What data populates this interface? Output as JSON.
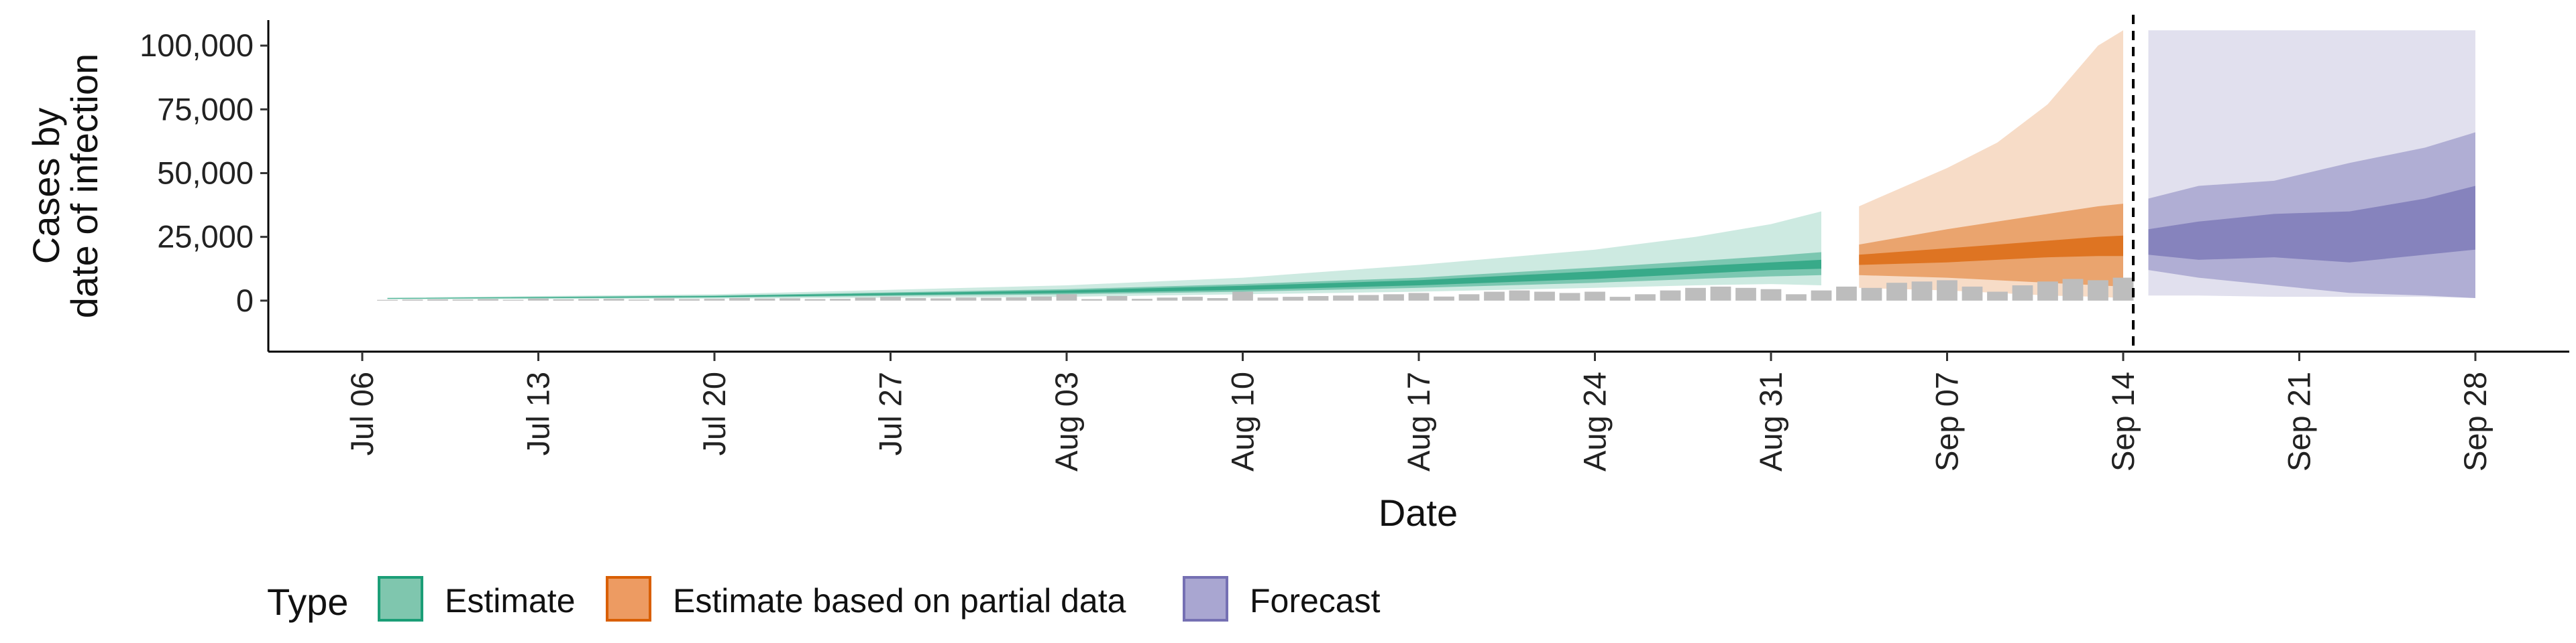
{
  "chart_data": {
    "type": "area",
    "xlabel": "Date",
    "ylabel_lines": [
      "Cases by",
      "date of infection"
    ],
    "ylim": [
      -20000,
      110000
    ],
    "yticks": [
      0,
      25000,
      50000,
      75000,
      100000
    ],
    "ytick_labels": [
      "0",
      "25,000",
      "50,000",
      "75,000",
      "100,000"
    ],
    "x_start": "Jul 06",
    "x_end": "Sep 28",
    "xticks": [
      {
        "label": "Jul 06",
        "day": 0
      },
      {
        "label": "Jul 13",
        "day": 7
      },
      {
        "label": "Jul 20",
        "day": 14
      },
      {
        "label": "Jul 27",
        "day": 21
      },
      {
        "label": "Aug 03",
        "day": 28
      },
      {
        "label": "Aug 10",
        "day": 35
      },
      {
        "label": "Aug 17",
        "day": 42
      },
      {
        "label": "Aug 24",
        "day": 49
      },
      {
        "label": "Aug 31",
        "day": 56
      },
      {
        "label": "Sep 07",
        "day": 63
      },
      {
        "label": "Sep 14",
        "day": 70
      },
      {
        "label": "Sep 21",
        "day": 77
      },
      {
        "label": "Sep 28",
        "day": 84
      }
    ],
    "vline_day": 70.4,
    "grid": false,
    "legend": {
      "title": "Type",
      "placement": "bottom",
      "items": [
        {
          "label": "Estimate",
          "fill": "#7fc6ae",
          "stroke": "#1b9e77"
        },
        {
          "label": "Estimate based on partial data",
          "fill": "#ed9b62",
          "stroke": "#d95f02"
        },
        {
          "label": "Forecast",
          "fill": "#a9a6d1",
          "stroke": "#7570b3"
        }
      ]
    },
    "series": [
      {
        "type_name": "Estimate",
        "color": "#1b9e77",
        "days": [
          1,
          14,
          28,
          35,
          42,
          49,
          53,
          56,
          58
        ],
        "bands": {
          "p90": [
            [
              500,
              1200
            ],
            [
              800,
              2500
            ],
            [
              1500,
              6000
            ],
            [
              2500,
              9000
            ],
            [
              3500,
              14000
            ],
            [
              5000,
              20000
            ],
            [
              6000,
              25000
            ],
            [
              6500,
              30000
            ],
            [
              6000,
              35000
            ]
          ],
          "p50": [
            [
              700,
              1000
            ],
            [
              1200,
              2000
            ],
            [
              2500,
              4500
            ],
            [
              3500,
              6500
            ],
            [
              5000,
              9000
            ],
            [
              7000,
              13000
            ],
            [
              8500,
              15500
            ],
            [
              9500,
              17500
            ],
            [
              10000,
              19000
            ]
          ],
          "p20": [
            [
              800,
              950
            ],
            [
              1400,
              1800
            ],
            [
              3000,
              4000
            ],
            [
              4200,
              5800
            ],
            [
              6000,
              8000
            ],
            [
              8500,
              11500
            ],
            [
              10500,
              13500
            ],
            [
              12000,
              15000
            ],
            [
              12500,
              16000
            ]
          ]
        }
      },
      {
        "type_name": "Estimate based on partial data",
        "color": "#d95f02",
        "days": [
          59.5,
          63,
          65,
          67,
          69,
          70
        ],
        "bands": {
          "p90": [
            [
              5000,
              37000
            ],
            [
              4000,
              52000
            ],
            [
              3000,
              62000
            ],
            [
              2000,
              77000
            ],
            [
              1500,
              100000
            ],
            [
              1000,
              106000
            ]
          ],
          "p50": [
            [
              10000,
              22000
            ],
            [
              9000,
              28000
            ],
            [
              8000,
              31000
            ],
            [
              7000,
              34000
            ],
            [
              6000,
              37000
            ],
            [
              5500,
              38000
            ]
          ],
          "p20": [
            [
              14000,
              18000
            ],
            [
              15000,
              20500
            ],
            [
              16000,
              22000
            ],
            [
              17000,
              23500
            ],
            [
              17500,
              25000
            ],
            [
              17500,
              25500
            ]
          ]
        }
      },
      {
        "type_name": "Forecast",
        "color": "#7570b3",
        "days": [
          71,
          73,
          76,
          79,
          82,
          84
        ],
        "bands": {
          "p90": [
            [
              2000,
              106000
            ],
            [
              2000,
              106000
            ],
            [
              1500,
              106000
            ],
            [
              1500,
              106000
            ],
            [
              1500,
              106000
            ],
            [
              1000,
              106000
            ]
          ],
          "p50": [
            [
              12000,
              40000
            ],
            [
              9000,
              45000
            ],
            [
              6000,
              47000
            ],
            [
              3000,
              54000
            ],
            [
              2000,
              60000
            ],
            [
              1000,
              66000
            ]
          ],
          "p20": [
            [
              18000,
              28000
            ],
            [
              16000,
              31000
            ],
            [
              17000,
              34000
            ],
            [
              15000,
              35000
            ],
            [
              18000,
              40000
            ],
            [
              20000,
              45000
            ]
          ]
        }
      }
    ],
    "observed_bars": {
      "color": "#bdbdbd",
      "days": [
        1,
        2,
        3,
        4,
        5,
        6,
        7,
        8,
        9,
        10,
        11,
        12,
        13,
        14,
        15,
        16,
        17,
        18,
        19,
        20,
        21,
        22,
        23,
        24,
        25,
        26,
        27,
        28,
        29,
        30,
        31,
        32,
        33,
        34,
        35,
        36,
        37,
        38,
        39,
        40,
        41,
        42,
        43,
        44,
        45,
        46,
        47,
        48,
        49,
        50,
        51,
        52,
        53,
        54,
        55,
        56,
        57,
        58,
        59,
        60,
        61,
        62,
        63,
        64,
        65,
        66,
        67,
        68,
        69,
        70
      ],
      "values": [
        300,
        400,
        500,
        400,
        600,
        300,
        800,
        500,
        600,
        700,
        400,
        900,
        600,
        700,
        1000,
        800,
        900,
        600,
        700,
        1200,
        1500,
        1000,
        900,
        1200,
        1100,
        1300,
        1600,
        2500,
        600,
        1800,
        700,
        1200,
        1500,
        1000,
        3500,
        1200,
        1500,
        1800,
        2000,
        2200,
        2500,
        3000,
        1600,
        2500,
        3500,
        4000,
        3500,
        3000,
        3500,
        1500,
        2500,
        4000,
        5000,
        5500,
        5000,
        4500,
        2500,
        4000,
        5500,
        5000,
        7000,
        7500,
        8000,
        5500,
        3500,
        6000,
        7500,
        8500,
        8000,
        9000
      ]
    }
  }
}
